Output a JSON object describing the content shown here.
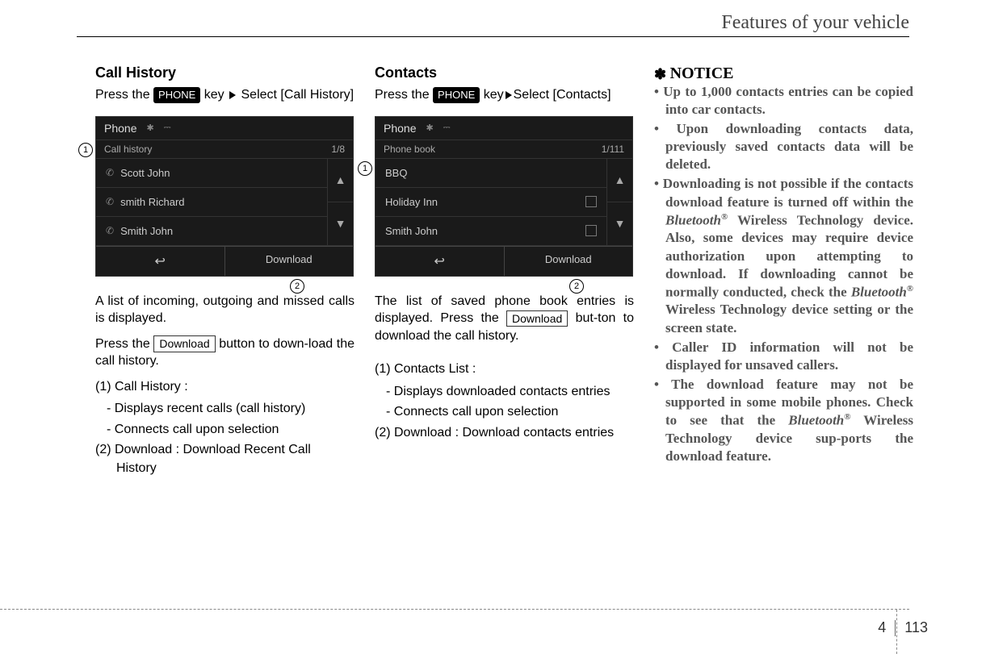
{
  "header_title": "Features of your vehicle",
  "col1": {
    "heading": "Call History",
    "intro_pre": "Press the ",
    "phone_key": "PHONE",
    "intro_post": " key ",
    "intro_end": " Select [Call History]",
    "screenshot": {
      "title": "Phone",
      "subheader_left": "Call history",
      "subheader_right": "1/8",
      "rows": [
        "Scott John",
        "smith Richard",
        "Smith John"
      ],
      "footer_download": "Download"
    },
    "body1": "A list of incoming, outgoing and missed calls is displayed.",
    "body2_pre": "Press the ",
    "download_label": "Download",
    "body2_post": " button to down-load the call history.",
    "item1": "(1) Call History :",
    "item1a": "- Displays recent calls (call history)",
    "item1b": "- Connects call upon selection",
    "item2": "(2) Download : Download Recent Call History"
  },
  "col2": {
    "heading": "Contacts",
    "intro_pre": "Press the ",
    "phone_key": "PHONE",
    "intro_mid": " key",
    "intro_end": "Select [Contacts]",
    "screenshot": {
      "title": "Phone",
      "subheader_left": "Phone book",
      "subheader_right": "1/111",
      "rows": [
        "BBQ",
        "Holiday Inn",
        "Smith John"
      ],
      "footer_download": "Download"
    },
    "body1_pre": "The list of saved phone book entries is displayed. Press the ",
    "download_label": "Download",
    "body1_post": " but-ton to download the call history.",
    "item1": "(1) Contacts List :",
    "item1a": "- Displays downloaded contacts entries",
    "item1b": "- Connects call upon selection",
    "item2": "(2) Download : Download contacts entries"
  },
  "col3": {
    "notice": "NOTICE",
    "bullets": [
      "Up to 1,000 contacts entries can be copied into car contacts.",
      "Upon downloading contacts data, previously saved contacts data will be deleted.",
      "Downloading is not possible if the contacts download feature is turned off within the <span class='bt-italic'>Bluetooth</span><span class='reg'>®</span> Wireless Technology device. Also, some devices may require device authorization upon attempting to download. If downloading cannot be normally conducted, check the <span class='bt-italic'>Bluetooth</span><span class='reg'>®</span> Wireless Technology device setting or the screen state.",
      "Caller ID information will not be displayed for unsaved callers.",
      "The download feature may not be supported in some mobile phones. Check to see that the <span class='bt-italic'>Bluetooth</span><span class='reg'>®</span> Wireless Technology device sup-ports the download feature."
    ]
  },
  "page_section": "4",
  "page_number": "113",
  "circled_1": "1",
  "circled_2": "2"
}
